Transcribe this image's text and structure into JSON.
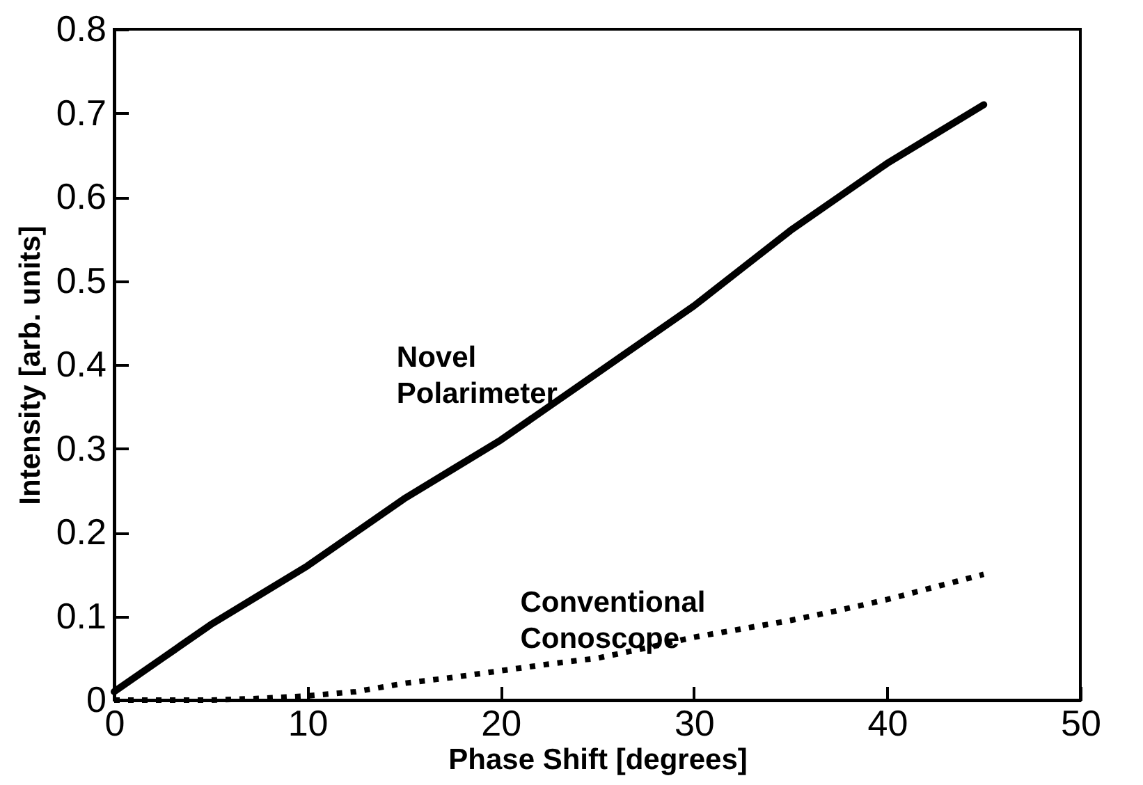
{
  "chart_data": {
    "type": "line",
    "xlabel": "Phase Shift [degrees]",
    "ylabel": "Intensity [arb. units]",
    "x": [
      0,
      2.5,
      5,
      7.5,
      10,
      12.5,
      15,
      17.5,
      20,
      22.5,
      25,
      27.5,
      30,
      32.5,
      35,
      37.5,
      40,
      42.5,
      45
    ],
    "series": [
      {
        "name": "Novel Polarimeter",
        "color": "#000000",
        "line_style": "solid",
        "values": [
          0.01,
          0.05,
          0.09,
          0.125,
          0.16,
          0.2,
          0.24,
          0.275,
          0.31,
          0.35,
          0.39,
          0.43,
          0.47,
          0.515,
          0.56,
          0.6,
          0.64,
          0.675,
          0.71
        ]
      },
      {
        "name": "Conventional Conoscope",
        "color": "#000000",
        "line_style": "dotted",
        "values": [
          0,
          0,
          0,
          0.002,
          0.005,
          0.01,
          0.02,
          0.027,
          0.035,
          0.043,
          0.05,
          0.062,
          0.075,
          0.085,
          0.095,
          0.107,
          0.12,
          0.135,
          0.15
        ]
      }
    ],
    "xlim": [
      0,
      50
    ],
    "xticks": [
      0,
      10,
      20,
      30,
      40,
      50
    ],
    "ylim": [
      0,
      0.8
    ],
    "yticks": [
      0,
      0.1,
      0.2,
      0.3,
      0.4,
      0.5,
      0.6,
      0.7,
      0.8
    ],
    "grid": false,
    "legend": false,
    "marker": "none"
  }
}
